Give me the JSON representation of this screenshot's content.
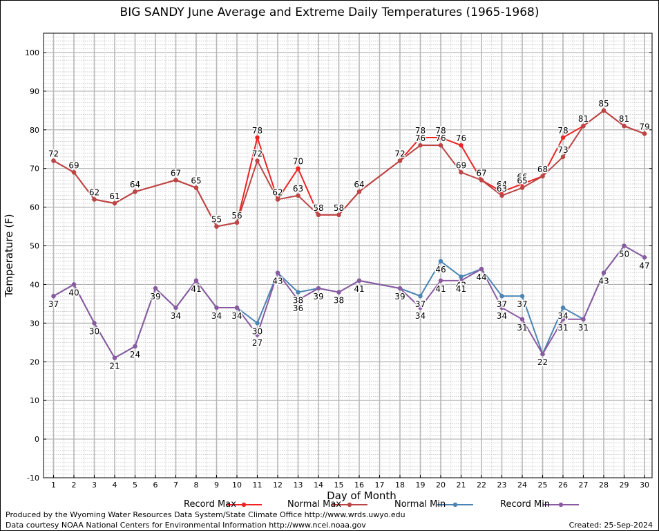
{
  "chart_data": {
    "type": "line",
    "title": "BIG SANDY June Average and Extreme Daily Temperatures (1965-1968)",
    "xlabel": "Day of Month",
    "ylabel": "Temperature (F)",
    "xlim": [
      1,
      30
    ],
    "ylim": [
      -10,
      105
    ],
    "x_ticks": [
      1,
      2,
      3,
      4,
      5,
      6,
      7,
      8,
      9,
      10,
      11,
      12,
      13,
      14,
      15,
      16,
      17,
      18,
      19,
      20,
      21,
      22,
      23,
      24,
      25,
      26,
      27,
      28,
      29,
      30
    ],
    "y_ticks": [
      -10,
      0,
      10,
      20,
      30,
      40,
      50,
      60,
      70,
      80,
      90,
      100
    ],
    "grid": true,
    "legend_position": "bottom",
    "series": [
      {
        "name": "Record Max",
        "color": "#ee2222",
        "points": [
          [
            1,
            72
          ],
          [
            2,
            69
          ],
          [
            3,
            62
          ],
          [
            4,
            61
          ],
          [
            5,
            64
          ],
          [
            7,
            67
          ],
          [
            8,
            65
          ],
          [
            9,
            55
          ],
          [
            10,
            56
          ],
          [
            11,
            78
          ],
          [
            12,
            62
          ],
          [
            13,
            70
          ],
          [
            14,
            58
          ],
          [
            15,
            58
          ],
          [
            16,
            64
          ],
          [
            18,
            72
          ],
          [
            19,
            78
          ],
          [
            20,
            78
          ],
          [
            21,
            76
          ],
          [
            22,
            67
          ],
          [
            23,
            64
          ],
          [
            24,
            66
          ],
          [
            25,
            68
          ],
          [
            26,
            78
          ],
          [
            27,
            81
          ],
          [
            28,
            85
          ],
          [
            29,
            81
          ],
          [
            30,
            79
          ]
        ]
      },
      {
        "name": "Normal Max",
        "color": "#bb4444",
        "points": [
          [
            1,
            72
          ],
          [
            2,
            69
          ],
          [
            3,
            62
          ],
          [
            4,
            61
          ],
          [
            5,
            64
          ],
          [
            7,
            67
          ],
          [
            8,
            65
          ],
          [
            9,
            55
          ],
          [
            10,
            56
          ],
          [
            11,
            72
          ],
          [
            12,
            62
          ],
          [
            13,
            63
          ],
          [
            14,
            58
          ],
          [
            15,
            58
          ],
          [
            16,
            64
          ],
          [
            18,
            72
          ],
          [
            19,
            76
          ],
          [
            20,
            76
          ],
          [
            21,
            69
          ],
          [
            22,
            67
          ],
          [
            23,
            63
          ],
          [
            24,
            65
          ],
          [
            25,
            68
          ],
          [
            26,
            73
          ],
          [
            27,
            81
          ],
          [
            28,
            85
          ],
          [
            29,
            81
          ],
          [
            30,
            79
          ]
        ]
      },
      {
        "name": "Normal Min",
        "color": "#4a84b4",
        "points": [
          [
            1,
            37
          ],
          [
            2,
            40
          ],
          [
            3,
            30
          ],
          [
            4,
            21
          ],
          [
            5,
            24
          ],
          [
            6,
            39
          ],
          [
            7,
            34
          ],
          [
            8,
            41
          ],
          [
            9,
            34
          ],
          [
            10,
            34
          ],
          [
            11,
            30
          ],
          [
            12,
            43
          ],
          [
            13,
            38
          ],
          [
            14,
            39
          ],
          [
            15,
            38
          ],
          [
            16,
            41
          ],
          [
            18,
            39
          ],
          [
            19,
            37
          ],
          [
            20,
            46
          ],
          [
            21,
            42
          ],
          [
            22,
            44
          ],
          [
            23,
            37
          ],
          [
            24,
            37
          ],
          [
            25,
            22
          ],
          [
            26,
            34
          ],
          [
            27,
            31
          ],
          [
            28,
            43
          ],
          [
            29,
            50
          ],
          [
            30,
            47
          ]
        ]
      },
      {
        "name": "Record Min",
        "color": "#8a5aa0",
        "points": [
          [
            1,
            37
          ],
          [
            2,
            40
          ],
          [
            3,
            30
          ],
          [
            4,
            21
          ],
          [
            5,
            24
          ],
          [
            6,
            39
          ],
          [
            7,
            34
          ],
          [
            8,
            41
          ],
          [
            9,
            34
          ],
          [
            10,
            34
          ],
          [
            11,
            27
          ],
          [
            12,
            43
          ],
          [
            13,
            36
          ],
          [
            14,
            39
          ],
          [
            15,
            38
          ],
          [
            16,
            41
          ],
          [
            18,
            39
          ],
          [
            19,
            34
          ],
          [
            20,
            41
          ],
          [
            21,
            41
          ],
          [
            22,
            44
          ],
          [
            23,
            34
          ],
          [
            24,
            31
          ],
          [
            25,
            22
          ],
          [
            26,
            31
          ],
          [
            27,
            31
          ],
          [
            28,
            43
          ],
          [
            29,
            50
          ],
          [
            30,
            47
          ]
        ]
      }
    ]
  },
  "footer": {
    "produced_by": "Produced by the Wyoming Water Resources Data System/State Climate Office http://www.wrds.uwyo.edu",
    "data_courtesy": "Data courtesy NOAA National Centers for Environmental Information http://www.ncei.noaa.gov",
    "created": "Created: 25-Sep-2024"
  }
}
